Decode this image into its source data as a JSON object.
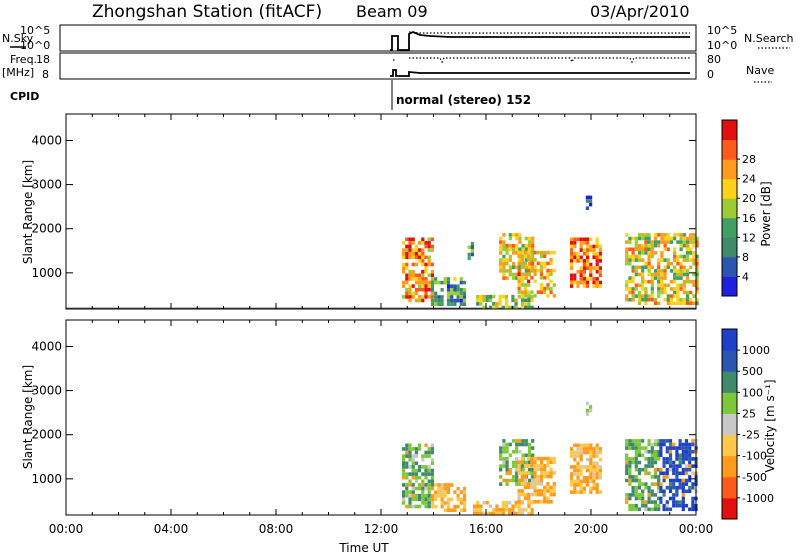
{
  "header": {
    "title": "Zhongshan Station (fitACF)",
    "beam": "Beam 09",
    "date": "03/Apr/2010"
  },
  "summary": {
    "nsky_label": "N.Sky",
    "nsky_ticks": [
      "10^5",
      "10^0"
    ],
    "nsearch_label": "N.Search",
    "nsearch_ticks": [
      "10^5",
      "10^0"
    ],
    "freq_label_1": "Freq.",
    "freq_label_2": "[MHz]",
    "freq_ticks": [
      "18",
      "8"
    ],
    "nave_label": "Nave",
    "nave_ticks": [
      "80",
      "0"
    ],
    "cpid_label": "CPID",
    "cpid_text": "normal (stereo) 152"
  },
  "colors": {
    "power_scale": [
      "#1f1fe0",
      "#2a55b0",
      "#3f8a6a",
      "#3fa060",
      "#9ccc33",
      "#ffd21a",
      "#ff9a1a",
      "#ff5a1a",
      "#e01010"
    ],
    "velocity_scale": [
      "#e01010",
      "#ff5a1a",
      "#ff9a1a",
      "#ffc84a",
      "#c8c8c8",
      "#7cc83a",
      "#3f8a6a",
      "#2a55b0",
      "#1f3fc8"
    ]
  },
  "chart_data": [
    {
      "type": "heatmap",
      "title": "",
      "xlabel": "Time UT",
      "ylabel": "Slant Range [km]",
      "xlim": [
        "00:00",
        "24:00"
      ],
      "ylim": [
        180,
        4600
      ],
      "x_ticks": [
        "00:00",
        "04:00",
        "08:00",
        "12:00",
        "16:00",
        "20:00",
        "00:00"
      ],
      "y_ticks": [
        "1000",
        "2000",
        "3000",
        "4000"
      ],
      "colorbar": {
        "label": "Power [dB]",
        "ticks": [
          "4",
          "8",
          "12",
          "16",
          "20",
          "24",
          "28"
        ],
        "range": [
          0,
          30
        ]
      },
      "data_gap_hours": [
        0,
        12.5
      ],
      "echo_regions": [
        {
          "t_start": 12.8,
          "t_end": 13.9,
          "range_min": 400,
          "range_max": 1800,
          "power_db": 22
        },
        {
          "t_start": 13.9,
          "t_end": 15.2,
          "range_min": 250,
          "range_max": 900,
          "power_db": 10
        },
        {
          "t_start": 15.3,
          "t_end": 15.5,
          "range_min": 1300,
          "range_max": 1700,
          "power_db": 8
        },
        {
          "t_start": 15.5,
          "t_end": 17.8,
          "range_min": 200,
          "range_max": 500,
          "power_db": 14
        },
        {
          "t_start": 16.5,
          "t_end": 17.8,
          "range_min": 900,
          "range_max": 1900,
          "power_db": 18
        },
        {
          "t_start": 17.2,
          "t_end": 18.6,
          "range_min": 500,
          "range_max": 1500,
          "power_db": 20
        },
        {
          "t_start": 19.2,
          "t_end": 20.4,
          "range_min": 700,
          "range_max": 1800,
          "power_db": 24
        },
        {
          "t_start": 19.8,
          "t_end": 20.0,
          "range_min": 2500,
          "range_max": 2750,
          "power_db": 6
        },
        {
          "t_start": 21.3,
          "t_end": 24.0,
          "range_min": 300,
          "range_max": 1900,
          "power_db": 18
        }
      ]
    },
    {
      "type": "heatmap",
      "title": "",
      "xlabel": "Time UT",
      "ylabel": "Slant Range [km]",
      "xlim": [
        "00:00",
        "24:00"
      ],
      "ylim": [
        180,
        4600
      ],
      "x_ticks": [
        "00:00",
        "04:00",
        "08:00",
        "12:00",
        "16:00",
        "20:00",
        "00:00"
      ],
      "y_ticks": [
        "1000",
        "2000",
        "3000",
        "4000"
      ],
      "colorbar": {
        "label": "Velocity [m s⁻¹]",
        "ticks": [
          "1000",
          "500",
          "100",
          "25",
          "-25",
          "-100",
          "-500",
          "-1000"
        ]
      },
      "echo_regions": [
        {
          "t_start": 12.8,
          "t_end": 13.9,
          "range_min": 400,
          "range_max": 1800,
          "velocity": 100
        },
        {
          "t_start": 13.9,
          "t_end": 15.2,
          "range_min": 250,
          "range_max": 900,
          "velocity": -100
        },
        {
          "t_start": 15.5,
          "t_end": 17.8,
          "range_min": 200,
          "range_max": 500,
          "velocity": -100
        },
        {
          "t_start": 16.5,
          "t_end": 17.8,
          "range_min": 900,
          "range_max": 1900,
          "velocity": 100
        },
        {
          "t_start": 17.2,
          "t_end": 18.6,
          "range_min": 500,
          "range_max": 1500,
          "velocity": -100
        },
        {
          "t_start": 19.2,
          "t_end": 20.4,
          "range_min": 700,
          "range_max": 1800,
          "velocity": -100
        },
        {
          "t_start": 19.8,
          "t_end": 20.0,
          "range_min": 2500,
          "range_max": 2750,
          "velocity": 25
        },
        {
          "t_start": 21.3,
          "t_end": 22.6,
          "range_min": 300,
          "range_max": 1900,
          "velocity": 100
        },
        {
          "t_start": 22.6,
          "t_end": 24.0,
          "range_min": 300,
          "range_max": 1900,
          "velocity": 1000
        }
      ]
    }
  ]
}
